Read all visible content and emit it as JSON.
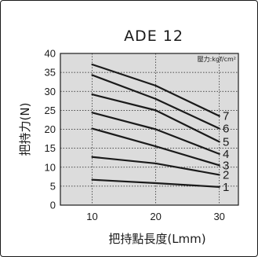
{
  "chart_data": {
    "type": "line",
    "title": "ADE 12",
    "xlabel": "把持點長度(Lmm)",
    "ylabel": "把持力(N)",
    "annotation": "壓力:kgf/cm²",
    "xlim": [
      5,
      33
    ],
    "ylim": [
      0,
      40
    ],
    "x_ticks": [
      10,
      20,
      30
    ],
    "y_ticks": [
      0,
      5,
      10,
      15,
      20,
      25,
      30,
      35,
      40
    ],
    "grid": true,
    "plot_background": "#dcdcdc",
    "line_color": "#1a1a1a",
    "series": [
      {
        "name": "1",
        "x": [
          10,
          20,
          30
        ],
        "values": [
          6.7,
          5.8,
          4.8
        ]
      },
      {
        "name": "2",
        "x": [
          10,
          20,
          30
        ],
        "values": [
          12.7,
          11.0,
          8.0
        ]
      },
      {
        "name": "3",
        "x": [
          10,
          20,
          30
        ],
        "values": [
          20.2,
          15.5,
          10.5
        ]
      },
      {
        "name": "4",
        "x": [
          10,
          20,
          30
        ],
        "values": [
          24.4,
          20.0,
          13.5
        ]
      },
      {
        "name": "5",
        "x": [
          10,
          20,
          30
        ],
        "values": [
          29.2,
          25.0,
          16.7
        ]
      },
      {
        "name": "6",
        "x": [
          10,
          20,
          30
        ],
        "values": [
          34.3,
          28.0,
          20.2
        ]
      },
      {
        "name": "7",
        "x": [
          10,
          20,
          30
        ],
        "values": [
          37.1,
          31.5,
          23.5
        ]
      }
    ]
  }
}
